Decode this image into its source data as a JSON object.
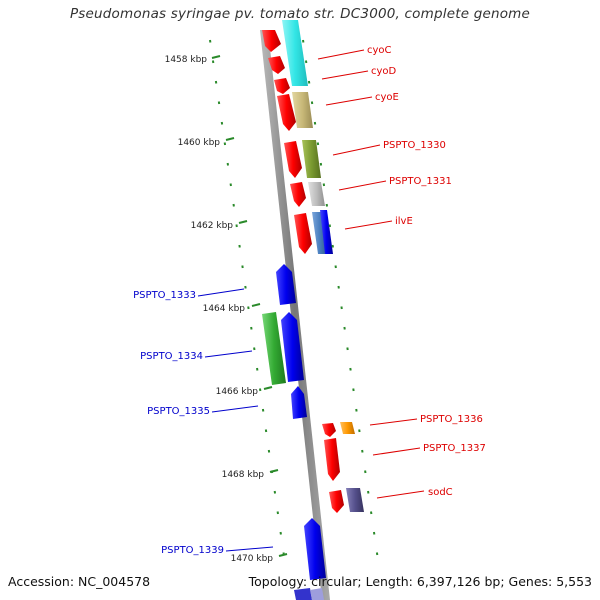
{
  "title": "Pseudomonas syringae pv. tomato str. DC3000, complete genome",
  "accession_text": "Accession: NC_004578",
  "summary_text": "Topology: circular; Length: 6,397,126 bp; Genes: 5,553",
  "ruler_labels": [
    "1458 kbp",
    "1460 kbp",
    "1462 kbp",
    "1464 kbp",
    "1466 kbp",
    "1468 kbp",
    "1470 kbp"
  ],
  "gene_labels": [
    {
      "name": "cyoC",
      "strand": "forward"
    },
    {
      "name": "cyoD",
      "strand": "forward"
    },
    {
      "name": "cyoE",
      "strand": "forward"
    },
    {
      "name": "PSPTO_1330",
      "strand": "forward"
    },
    {
      "name": "PSPTO_1331",
      "strand": "forward"
    },
    {
      "name": "ilvE",
      "strand": "forward"
    },
    {
      "name": "PSPTO_1333",
      "strand": "reverse"
    },
    {
      "name": "PSPTO_1334",
      "strand": "reverse"
    },
    {
      "name": "PSPTO_1335",
      "strand": "reverse"
    },
    {
      "name": "PSPTO_1336",
      "strand": "forward"
    },
    {
      "name": "PSPTO_1337",
      "strand": "forward"
    },
    {
      "name": "sodC",
      "strand": "forward"
    },
    {
      "name": "PSPTO_1339",
      "strand": "reverse"
    }
  ],
  "colors": {
    "forward_label": "#dd0000",
    "reverse_label": "#0000cc",
    "forward_cds": "#ff0000",
    "reverse_cds": "#0000ee",
    "ruler_tick": "#2a8a2a",
    "backbone": "#888888",
    "cog_cyan": "#33e6e6",
    "cog_khaki": "#c8b878",
    "cog_olive": "#7a9a30",
    "cog_grey": "#bdbdbd",
    "cog_steel": "#4a7fbf",
    "cog_green": "#33aa33",
    "cog_orange": "#ff9900",
    "cog_slate": "#55508c"
  }
}
